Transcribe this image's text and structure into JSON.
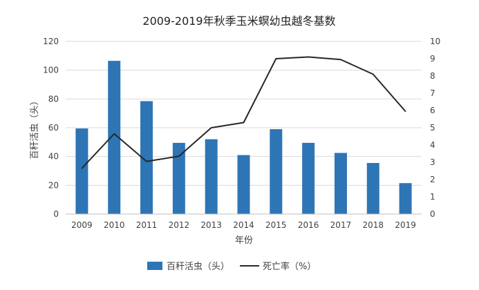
{
  "chart_data": {
    "type": "bar+line",
    "title": "2009-2019年秋季玉米螟幼虫越冬基数",
    "xlabel": "年份",
    "ylabel": "百秆活虫（头）",
    "y2label": "",
    "categories": [
      "2009",
      "2010",
      "2011",
      "2012",
      "2013",
      "2014",
      "2015",
      "2016",
      "2017",
      "2018",
      "2019"
    ],
    "series": [
      {
        "name": "百秆活虫（头）",
        "type": "bar",
        "axis": "left",
        "color": "#2e75b6",
        "values": [
          59.5,
          106.5,
          78.5,
          49.5,
          52,
          41,
          59,
          49.5,
          42.5,
          35.5,
          21.5
        ]
      },
      {
        "name": "死亡率（%）",
        "type": "line",
        "axis": "right",
        "color": "#262626",
        "values": [
          2.65,
          4.65,
          3.05,
          3.35,
          5.0,
          5.3,
          9.0,
          9.1,
          8.95,
          8.1,
          5.95
        ]
      }
    ],
    "ylim": [
      0,
      120
    ],
    "yticks": [
      0,
      20,
      40,
      60,
      80,
      100,
      120
    ],
    "y2lim": [
      0,
      10
    ],
    "y2ticks": [
      0,
      1,
      2,
      3,
      4,
      5,
      6,
      7,
      8,
      9,
      10
    ],
    "grid": true,
    "legend": "bottom-center"
  }
}
